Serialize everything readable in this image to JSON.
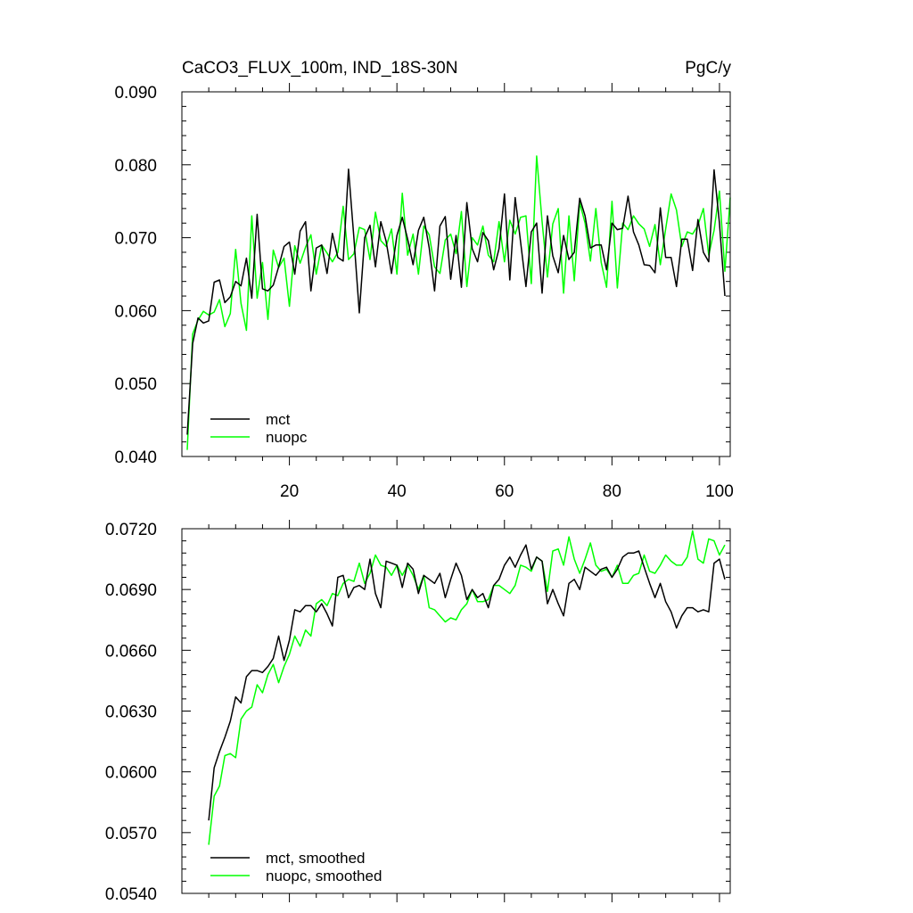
{
  "colors": {
    "mct": "#000000",
    "nuopc": "#00ff00"
  },
  "chart_data": [
    {
      "type": "line",
      "title": "CaCO3_FLUX_100m, IND_18S-30N",
      "units_label": "PgC/y",
      "xlim": [
        0,
        102
      ],
      "ylim": [
        0.04,
        0.09
      ],
      "x_ticks": [
        20,
        40,
        60,
        80,
        100
      ],
      "x_tick_labels": [
        "20",
        "40",
        "60",
        "80",
        "100"
      ],
      "y_ticks": [
        0.04,
        0.05,
        0.06,
        0.07,
        0.08,
        0.09
      ],
      "y_tick_labels": [
        "0.040",
        "0.050",
        "0.060",
        "0.070",
        "0.080",
        "0.090"
      ],
      "x_start": 1,
      "legend": [
        "mct",
        "nuopc"
      ],
      "series": [
        {
          "name": "mct",
          "color": "#000000",
          "values": [
            0.043,
            0.0555,
            0.059,
            0.0583,
            0.0586,
            0.0639,
            0.0642,
            0.0611,
            0.0619,
            0.064,
            0.0634,
            0.0672,
            0.0617,
            0.0732,
            0.063,
            0.0627,
            0.0635,
            0.066,
            0.0688,
            0.0694,
            0.065,
            0.0709,
            0.0722,
            0.0627,
            0.0686,
            0.069,
            0.0651,
            0.0706,
            0.0673,
            0.0668,
            0.0794,
            0.07,
            0.0597,
            0.07,
            0.0717,
            0.066,
            0.0722,
            0.0695,
            0.0651,
            0.0703,
            0.0728,
            0.0698,
            0.0663,
            0.071,
            0.0728,
            0.0686,
            0.0627,
            0.0716,
            0.0729,
            0.0643,
            0.0703,
            0.0632,
            0.0748,
            0.0685,
            0.0667,
            0.0707,
            0.0696,
            0.0656,
            0.0685,
            0.076,
            0.0642,
            0.0755,
            0.0694,
            0.0633,
            0.0708,
            0.072,
            0.0624,
            0.073,
            0.0675,
            0.0652,
            0.0703,
            0.067,
            0.068,
            0.0754,
            0.073,
            0.0686,
            0.069,
            0.069,
            0.0656,
            0.072,
            0.0711,
            0.0713,
            0.0757,
            0.0708,
            0.069,
            0.0663,
            0.0662,
            0.0652,
            0.0741,
            0.0673,
            0.0673,
            0.0633,
            0.0698,
            0.0698,
            0.0655,
            0.0725,
            0.068,
            0.0667,
            0.0793,
            0.072,
            0.062
          ]
        },
        {
          "name": "nuopc",
          "color": "#00ff00",
          "values": [
            0.0409,
            0.0568,
            0.0587,
            0.0599,
            0.0594,
            0.0598,
            0.0615,
            0.0578,
            0.0596,
            0.0684,
            0.061,
            0.0573,
            0.073,
            0.0617,
            0.0666,
            0.0588,
            0.0683,
            0.0659,
            0.0672,
            0.0606,
            0.0689,
            0.0665,
            0.0687,
            0.0704,
            0.065,
            0.069,
            0.0679,
            0.0667,
            0.068,
            0.0743,
            0.067,
            0.0678,
            0.0714,
            0.0711,
            0.067,
            0.0735,
            0.0696,
            0.0688,
            0.0712,
            0.065,
            0.0761,
            0.0676,
            0.0705,
            0.065,
            0.0716,
            0.0704,
            0.066,
            0.0651,
            0.0697,
            0.0705,
            0.0678,
            0.0736,
            0.0633,
            0.07,
            0.069,
            0.0716,
            0.0676,
            0.0667,
            0.0722,
            0.0667,
            0.0724,
            0.0705,
            0.0728,
            0.073,
            0.0637,
            0.0812,
            0.0722,
            0.0646,
            0.0719,
            0.074,
            0.0624,
            0.073,
            0.0641,
            0.0748,
            0.072,
            0.0668,
            0.074,
            0.0666,
            0.0632,
            0.075,
            0.0631,
            0.072,
            0.0711,
            0.073,
            0.0719,
            0.0712,
            0.0688,
            0.0718,
            0.0663,
            0.0712,
            0.076,
            0.0738,
            0.0688,
            0.0708,
            0.0705,
            0.0717,
            0.074,
            0.0676,
            0.071,
            0.0764,
            0.0654,
            0.0755
          ]
        }
      ]
    },
    {
      "type": "line",
      "title": "",
      "xlim": [
        0,
        102
      ],
      "ylim": [
        0.054,
        0.072
      ],
      "x_ticks": [
        20,
        40,
        60,
        80,
        100
      ],
      "x_tick_labels": [],
      "y_ticks": [
        0.054,
        0.057,
        0.06,
        0.063,
        0.066,
        0.069,
        0.072
      ],
      "y_tick_labels": [
        "0.0540",
        "0.0570",
        "0.0600",
        "0.0630",
        "0.0660",
        "0.0690",
        "0.0720"
      ],
      "x_start": 5,
      "legend": [
        "mct, smoothed",
        "nuopc, smoothed"
      ],
      "series": [
        {
          "name": "mct, smoothed",
          "color": "#000000",
          "values": [
            0.0576,
            0.0602,
            0.061,
            0.0617,
            0.0625,
            0.0637,
            0.0634,
            0.0647,
            0.065,
            0.065,
            0.0649,
            0.0652,
            0.0656,
            0.0667,
            0.0655,
            0.0665,
            0.068,
            0.0679,
            0.0682,
            0.0682,
            0.0679,
            0.0683,
            0.0678,
            0.0672,
            0.0696,
            0.0697,
            0.0686,
            0.0691,
            0.0692,
            0.069,
            0.0705,
            0.0688,
            0.0681,
            0.0704,
            0.0703,
            0.0702,
            0.0691,
            0.0703,
            0.07,
            0.0688,
            0.0697,
            0.0695,
            0.0693,
            0.0698,
            0.0686,
            0.0695,
            0.0703,
            0.0697,
            0.0685,
            0.069,
            0.0686,
            0.0688,
            0.0681,
            0.0692,
            0.0695,
            0.0702,
            0.0706,
            0.0701,
            0.0707,
            0.0712,
            0.07,
            0.0706,
            0.0704,
            0.0683,
            0.069,
            0.0683,
            0.0677,
            0.0693,
            0.0695,
            0.069,
            0.0701,
            0.0699,
            0.0697,
            0.07,
            0.0701,
            0.0696,
            0.07,
            0.0706,
            0.0708,
            0.0708,
            0.0709,
            0.0701,
            0.0693,
            0.0686,
            0.0693,
            0.0684,
            0.0679,
            0.0671,
            0.0677,
            0.0681,
            0.0681,
            0.0679,
            0.068,
            0.0679,
            0.0703,
            0.0705,
            0.0695
          ]
        },
        {
          "name": "nuopc, smoothed",
          "color": "#00ff00",
          "values": [
            0.0564,
            0.0588,
            0.0593,
            0.0608,
            0.0609,
            0.0607,
            0.0626,
            0.063,
            0.0632,
            0.0643,
            0.0639,
            0.0648,
            0.0653,
            0.0644,
            0.0652,
            0.0658,
            0.0667,
            0.0662,
            0.067,
            0.0667,
            0.0683,
            0.0685,
            0.0682,
            0.0688,
            0.0687,
            0.0693,
            0.0695,
            0.0694,
            0.0703,
            0.0693,
            0.0698,
            0.0707,
            0.0702,
            0.0701,
            0.0697,
            0.0702,
            0.0697,
            0.0702,
            0.0697,
            0.069,
            0.0697,
            0.0681,
            0.068,
            0.0677,
            0.0674,
            0.0676,
            0.0675,
            0.068,
            0.0683,
            0.069,
            0.0684,
            0.0684,
            0.0685,
            0.0692,
            0.0692,
            0.069,
            0.0688,
            0.0692,
            0.0702,
            0.0701,
            0.0699,
            0.0706,
            0.0704,
            0.0689,
            0.0709,
            0.071,
            0.0702,
            0.0716,
            0.0705,
            0.0698,
            0.0705,
            0.0713,
            0.0702,
            0.0699,
            0.07,
            0.0696,
            0.0702,
            0.0693,
            0.0693,
            0.0697,
            0.0698,
            0.0707,
            0.0699,
            0.0698,
            0.0702,
            0.0707,
            0.0704,
            0.0702,
            0.0702,
            0.0706,
            0.0719,
            0.0705,
            0.0703,
            0.0715,
            0.0714,
            0.0707,
            0.0712
          ]
        }
      ]
    }
  ]
}
